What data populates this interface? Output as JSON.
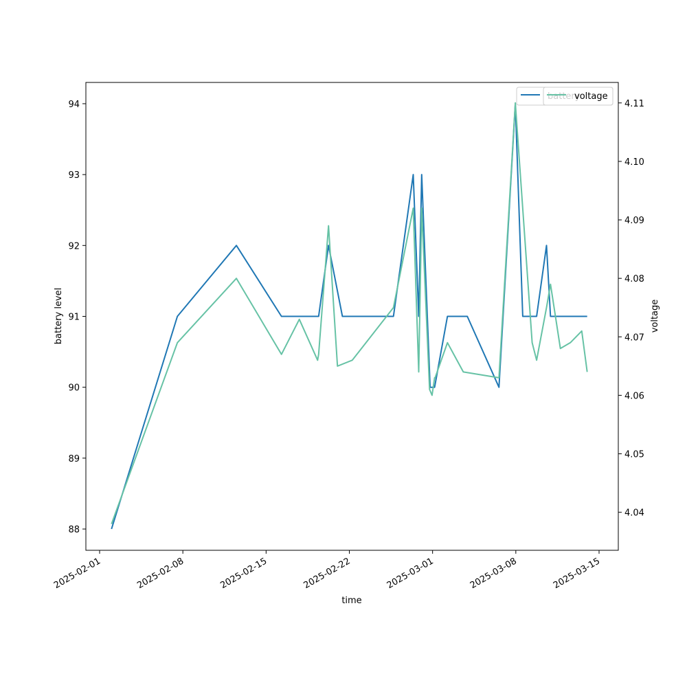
{
  "chart_data": {
    "type": "line",
    "title": "",
    "xlabel": "time",
    "ylabel_left": "battery level",
    "ylabel_right": "voltage",
    "x_ticks": [
      "2025-02-01",
      "2025-02-08",
      "2025-02-15",
      "2025-02-22",
      "2025-03-01",
      "2025-03-08",
      "2025-03-15"
    ],
    "ylim_left": [
      87.7,
      94.3
    ],
    "ylim_right": [
      4.0335,
      4.1135
    ],
    "y_ticks_left": [
      88,
      89,
      90,
      91,
      92,
      93,
      94
    ],
    "y_ticks_right": [
      4.04,
      4.05,
      4.06,
      4.07,
      4.08,
      4.09,
      4.1,
      4.11
    ],
    "y_ticks_right_labels": [
      "4.04",
      "4.05",
      "4.06",
      "4.07",
      "4.08",
      "4.09",
      "4.10",
      "4.11"
    ],
    "legend_position": "top-right",
    "grid": false,
    "series": [
      {
        "name": "battery",
        "axis": "left",
        "color": "#1f77b4",
        "x": [
          "2025-02-02 00:00",
          "2025-02-07 13:00",
          "2025-02-12 12:00",
          "2025-02-16 07:00",
          "2025-02-19 10:00",
          "2025-02-20 06:00",
          "2025-02-21 10:00",
          "2025-02-25 17:00",
          "2025-02-27 09:00",
          "2025-02-27 20:00",
          "2025-02-28 02:00",
          "2025-02-28 19:00",
          "2025-03-01 04:00",
          "2025-03-02 06:00",
          "2025-03-03 22:00",
          "2025-03-06 14:00",
          "2025-03-07 23:00",
          "2025-03-08 14:00",
          "2025-03-09 18:00",
          "2025-03-10 14:00",
          "2025-03-10 22:00",
          "2025-03-14 00:00"
        ],
        "y": [
          88,
          91,
          92,
          91,
          91,
          92,
          91,
          91,
          93,
          91,
          93,
          90,
          90,
          91,
          91,
          90,
          94,
          91,
          91,
          92,
          91,
          91
        ]
      },
      {
        "name": "voltage",
        "axis": "right",
        "color": "#66c2a5",
        "x": [
          "2025-02-02 00:00",
          "2025-02-07 13:00",
          "2025-02-12 12:00",
          "2025-02-16 07:00",
          "2025-02-17 19:00",
          "2025-02-19 08:00",
          "2025-02-19 10:00",
          "2025-02-20 06:00",
          "2025-02-21 00:00",
          "2025-02-22 06:00",
          "2025-02-25 17:00",
          "2025-02-27 09:00",
          "2025-02-27 20:00",
          "2025-02-28 02:00",
          "2025-02-28 18:00",
          "2025-02-28 23:00",
          "2025-03-01 04:00",
          "2025-03-01 05:00",
          "2025-03-02 06:00",
          "2025-03-03 14:00",
          "2025-03-06 14:00",
          "2025-03-07 23:00",
          "2025-03-09 09:00",
          "2025-03-09 18:00",
          "2025-03-10 14:00",
          "2025-03-10 22:00",
          "2025-03-11 18:00",
          "2025-03-12 14:00",
          "2025-03-13 13:00",
          "2025-03-14 00:00"
        ],
        "y": [
          4.038,
          4.069,
          4.08,
          4.067,
          4.073,
          4.066,
          4.067,
          4.089,
          4.065,
          4.066,
          4.075,
          4.092,
          4.064,
          4.092,
          4.061,
          4.06,
          4.063,
          4.063,
          4.069,
          4.064,
          4.063,
          4.11,
          4.069,
          4.066,
          4.075,
          4.079,
          4.068,
          4.069,
          4.071,
          4.064
        ]
      }
    ]
  }
}
